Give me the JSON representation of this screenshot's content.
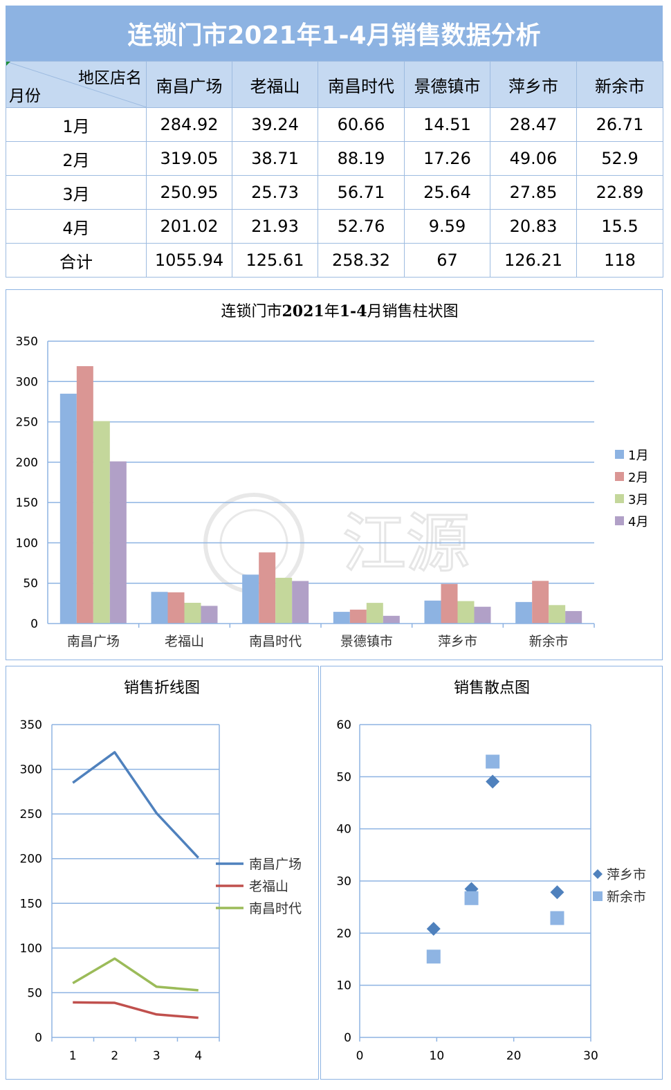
{
  "header": {
    "title": "连锁门市2021年1-4月销售数据分析"
  },
  "table": {
    "corner_top": "地区店名",
    "corner_bottom": "月份",
    "columns": [
      "南昌广场",
      "老福山",
      "南昌时代",
      "景德镇市",
      "萍乡市",
      "新余市"
    ],
    "rows": [
      {
        "label": "1月",
        "values": [
          "284.92",
          "39.24",
          "60.66",
          "14.51",
          "28.47",
          "26.71"
        ]
      },
      {
        "label": "2月",
        "values": [
          "319.05",
          "38.71",
          "88.19",
          "17.26",
          "49.06",
          "52.9"
        ]
      },
      {
        "label": "3月",
        "values": [
          "250.95",
          "25.73",
          "56.71",
          "25.64",
          "27.85",
          "22.89"
        ]
      },
      {
        "label": "4月",
        "values": [
          "201.02",
          "21.93",
          "52.76",
          "9.59",
          "20.83",
          "15.5"
        ]
      },
      {
        "label": "合计",
        "values": [
          "1055.94",
          "125.61",
          "258.32",
          "67",
          "126.21",
          "118"
        ]
      }
    ]
  },
  "watermark": "江源",
  "chart_data": [
    {
      "type": "bar",
      "title_plain": "连锁门市",
      "title_bold1": "2021",
      "title_mid": "年",
      "title_bold2": "1-4",
      "title_end": "月销售柱状图",
      "categories": [
        "南昌广场",
        "老福山",
        "南昌时代",
        "景德镇市",
        "萍乡市",
        "新余市"
      ],
      "series": [
        {
          "name": "1月",
          "color": "#8db3e2",
          "values": [
            284.92,
            39.24,
            60.66,
            14.51,
            28.47,
            26.71
          ]
        },
        {
          "name": "2月",
          "color": "#da9694",
          "values": [
            319.05,
            38.71,
            88.19,
            17.26,
            49.06,
            52.9
          ]
        },
        {
          "name": "3月",
          "color": "#c4d79b",
          "values": [
            250.95,
            25.73,
            56.71,
            25.64,
            27.85,
            22.89
          ]
        },
        {
          "name": "4月",
          "color": "#b1a0c7",
          "values": [
            201.02,
            21.93,
            52.76,
            9.59,
            20.83,
            15.5
          ]
        }
      ],
      "ylim": [
        0,
        350
      ],
      "yticks": [
        0,
        50,
        100,
        150,
        200,
        250,
        300,
        350
      ],
      "grid": true,
      "legend": "right"
    },
    {
      "type": "line",
      "title": "销售折线图",
      "x": [
        1,
        2,
        3,
        4
      ],
      "series": [
        {
          "name": "南昌广场",
          "color": "#4f81bd",
          "values": [
            284.92,
            319.05,
            250.95,
            201.02
          ]
        },
        {
          "name": "老福山",
          "color": "#c0504d",
          "values": [
            39.24,
            38.71,
            25.73,
            21.93
          ]
        },
        {
          "name": "南昌时代",
          "color": "#9bbb59",
          "values": [
            60.66,
            88.19,
            56.71,
            52.76
          ]
        }
      ],
      "ylim": [
        0,
        350
      ],
      "yticks": [
        0,
        50,
        100,
        150,
        200,
        250,
        300,
        350
      ],
      "grid": true,
      "legend": "right"
    },
    {
      "type": "scatter",
      "title": "销售散点图",
      "series": [
        {
          "name": "萍乡市",
          "color": "#4f81bd",
          "marker": "diamond",
          "points": [
            [
              9.59,
              20.83
            ],
            [
              14.51,
              28.47
            ],
            [
              17.26,
              49.06
            ],
            [
              25.64,
              27.85
            ]
          ]
        },
        {
          "name": "新余市",
          "color": "#8eb4e3",
          "marker": "square",
          "points": [
            [
              9.59,
              15.5
            ],
            [
              14.51,
              26.71
            ],
            [
              17.26,
              52.9
            ],
            [
              25.64,
              22.89
            ]
          ]
        }
      ],
      "xlim": [
        0,
        30
      ],
      "xticks": [
        0,
        10,
        20,
        30
      ],
      "ylim": [
        0,
        60
      ],
      "yticks": [
        0,
        10,
        20,
        30,
        40,
        50,
        60
      ],
      "grid": true,
      "legend": "right"
    }
  ]
}
